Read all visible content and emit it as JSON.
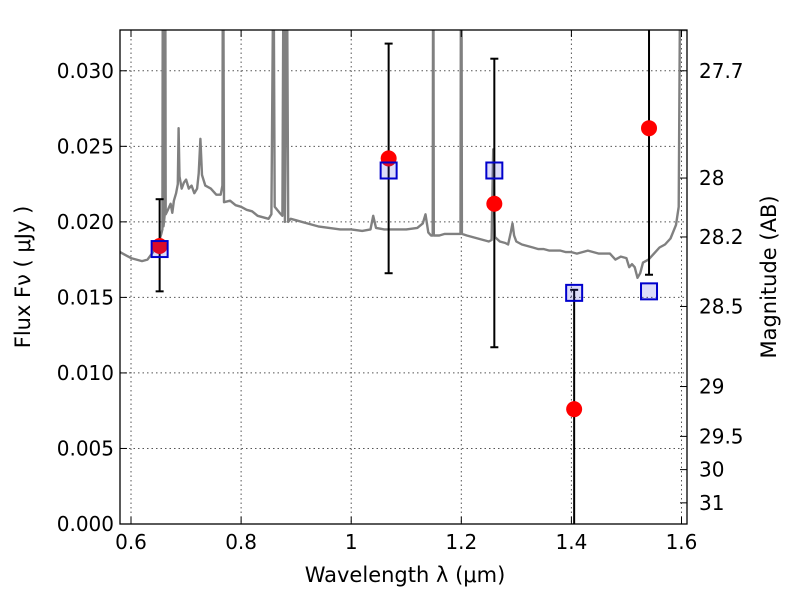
{
  "chart_data": {
    "type": "scatter",
    "xlabel": "Wavelength  λ (μm)",
    "ylabel": "Flux  Fν  ( μJy )",
    "ylabel_right": "Magnitude (AB)",
    "xlim": [
      0.58,
      1.61
    ],
    "ylim": [
      0.0,
      0.0327
    ],
    "grid": true,
    "x_ticks": [
      0.6,
      0.8,
      1.0,
      1.2,
      1.4,
      1.6
    ],
    "x_tick_labels": [
      "0.6",
      "0.8",
      "1",
      "1.2",
      "1.4",
      "1.6"
    ],
    "y_ticks": [
      0.0,
      0.005,
      0.01,
      0.015,
      0.02,
      0.025,
      0.03
    ],
    "y_tick_labels": [
      "0.000",
      "0.005",
      "0.010",
      "0.015",
      "0.020",
      "0.025",
      "0.030"
    ],
    "right_ticks": [
      {
        "label": "27.7",
        "flux": 0.03
      },
      {
        "label": "28",
        "flux": 0.0229
      },
      {
        "label": "28.2",
        "flux": 0.019
      },
      {
        "label": "28.5",
        "flux": 0.0144
      },
      {
        "label": "29",
        "flux": 0.0091
      },
      {
        "label": "29.5",
        "flux": 0.0058
      },
      {
        "label": "30",
        "flux": 0.0036
      },
      {
        "label": "31",
        "flux": 0.0014
      }
    ],
    "series": [
      {
        "kind": "model_spectrum",
        "color": "#808080",
        "points": [
          [
            0.58,
            0.018
          ],
          [
            0.6,
            0.0176
          ],
          [
            0.62,
            0.0174
          ],
          [
            0.63,
            0.0175
          ],
          [
            0.64,
            0.018
          ],
          [
            0.645,
            0.0184
          ],
          [
            0.65,
            0.0186
          ],
          [
            0.655,
            0.0192
          ],
          [
            0.657,
            0.0195
          ],
          [
            0.6575,
            0.0327
          ],
          [
            0.6585,
            0.0327
          ],
          [
            0.659,
            0.0197
          ],
          [
            0.661,
            0.0204
          ],
          [
            0.6615,
            0.0327
          ],
          [
            0.6625,
            0.0327
          ],
          [
            0.663,
            0.0205
          ],
          [
            0.667,
            0.0208
          ],
          [
            0.672,
            0.0212
          ],
          [
            0.675,
            0.0206
          ],
          [
            0.678,
            0.0214
          ],
          [
            0.682,
            0.0219
          ],
          [
            0.685,
            0.0225
          ],
          [
            0.6865,
            0.0262
          ],
          [
            0.688,
            0.023
          ],
          [
            0.692,
            0.0222
          ],
          [
            0.696,
            0.0226
          ],
          [
            0.7,
            0.0228
          ],
          [
            0.705,
            0.0222
          ],
          [
            0.71,
            0.0224
          ],
          [
            0.715,
            0.0219
          ],
          [
            0.72,
            0.0222
          ],
          [
            0.723,
            0.0232
          ],
          [
            0.726,
            0.0255
          ],
          [
            0.729,
            0.0231
          ],
          [
            0.735,
            0.0224
          ],
          [
            0.745,
            0.0222
          ],
          [
            0.755,
            0.0218
          ],
          [
            0.763,
            0.0218
          ],
          [
            0.766,
            0.0224
          ],
          [
            0.7665,
            0.0327
          ],
          [
            0.768,
            0.0327
          ],
          [
            0.769,
            0.0213
          ],
          [
            0.78,
            0.0214
          ],
          [
            0.79,
            0.0211
          ],
          [
            0.8,
            0.021
          ],
          [
            0.81,
            0.0208
          ],
          [
            0.82,
            0.0207
          ],
          [
            0.83,
            0.0204
          ],
          [
            0.84,
            0.0203
          ],
          [
            0.85,
            0.0202
          ],
          [
            0.855,
            0.0205
          ],
          [
            0.8575,
            0.0327
          ],
          [
            0.8595,
            0.0327
          ],
          [
            0.861,
            0.021
          ],
          [
            0.87,
            0.0206
          ],
          [
            0.875,
            0.0204
          ],
          [
            0.8765,
            0.0327
          ],
          [
            0.878,
            0.0327
          ],
          [
            0.8795,
            0.02
          ],
          [
            0.882,
            0.0327
          ],
          [
            0.884,
            0.0327
          ],
          [
            0.8855,
            0.02
          ],
          [
            0.89,
            0.0202
          ],
          [
            0.9,
            0.0201
          ],
          [
            0.92,
            0.0199
          ],
          [
            0.94,
            0.0197
          ],
          [
            0.96,
            0.0196
          ],
          [
            0.98,
            0.0195
          ],
          [
            1.0,
            0.0195
          ],
          [
            1.02,
            0.0194
          ],
          [
            1.035,
            0.0195
          ],
          [
            1.04,
            0.0204
          ],
          [
            1.045,
            0.0196
          ],
          [
            1.06,
            0.0195
          ],
          [
            1.08,
            0.0195
          ],
          [
            1.1,
            0.0195
          ],
          [
            1.12,
            0.0196
          ],
          [
            1.13,
            0.0199
          ],
          [
            1.135,
            0.0205
          ],
          [
            1.14,
            0.0193
          ],
          [
            1.145,
            0.0191
          ],
          [
            1.148,
            0.0191
          ],
          [
            1.1485,
            0.0327
          ],
          [
            1.1495,
            0.0327
          ],
          [
            1.15,
            0.0191
          ],
          [
            1.16,
            0.0191
          ],
          [
            1.17,
            0.0192
          ],
          [
            1.18,
            0.0192
          ],
          [
            1.19,
            0.0192
          ],
          [
            1.1985,
            0.0192
          ],
          [
            1.199,
            0.0327
          ],
          [
            1.2005,
            0.0327
          ],
          [
            1.201,
            0.0192
          ],
          [
            1.21,
            0.0191
          ],
          [
            1.22,
            0.019
          ],
          [
            1.23,
            0.0189
          ],
          [
            1.24,
            0.0188
          ],
          [
            1.25,
            0.0187
          ],
          [
            1.255,
            0.0188
          ],
          [
            1.258,
            0.0248
          ],
          [
            1.261,
            0.019
          ],
          [
            1.27,
            0.0187
          ],
          [
            1.28,
            0.0186
          ],
          [
            1.285,
            0.0185
          ],
          [
            1.29,
            0.0193
          ],
          [
            1.293,
            0.0199
          ],
          [
            1.296,
            0.0191
          ],
          [
            1.3,
            0.0187
          ],
          [
            1.31,
            0.0185
          ],
          [
            1.32,
            0.0184
          ],
          [
            1.33,
            0.0183
          ],
          [
            1.34,
            0.0182
          ],
          [
            1.35,
            0.0182
          ],
          [
            1.36,
            0.0181
          ],
          [
            1.37,
            0.0181
          ],
          [
            1.38,
            0.0181
          ],
          [
            1.39,
            0.018
          ],
          [
            1.4,
            0.018
          ],
          [
            1.41,
            0.0179
          ],
          [
            1.42,
            0.018
          ],
          [
            1.43,
            0.0181
          ],
          [
            1.44,
            0.018
          ],
          [
            1.45,
            0.0179
          ],
          [
            1.46,
            0.0179
          ],
          [
            1.47,
            0.0179
          ],
          [
            1.48,
            0.0175
          ],
          [
            1.49,
            0.0177
          ],
          [
            1.5,
            0.0176
          ],
          [
            1.505,
            0.017
          ],
          [
            1.51,
            0.0172
          ],
          [
            1.515,
            0.017
          ],
          [
            1.52,
            0.0163
          ],
          [
            1.525,
            0.0166
          ],
          [
            1.53,
            0.0173
          ],
          [
            1.54,
            0.0175
          ],
          [
            1.55,
            0.0179
          ],
          [
            1.56,
            0.0183
          ],
          [
            1.57,
            0.0185
          ],
          [
            1.58,
            0.0189
          ],
          [
            1.59,
            0.0198
          ],
          [
            1.595,
            0.021
          ],
          [
            1.597,
            0.0327
          ],
          [
            1.61,
            0.0327
          ]
        ]
      },
      {
        "kind": "model_points",
        "marker": "square",
        "color": "#0000cc",
        "points": [
          [
            0.652,
            0.0182
          ],
          [
            1.068,
            0.0234
          ],
          [
            1.26,
            0.0234
          ],
          [
            1.405,
            0.0153
          ],
          [
            1.541,
            0.0154
          ]
        ]
      },
      {
        "kind": "observed",
        "marker": "circle",
        "color": "#ff0000",
        "points": [
          {
            "x": 0.652,
            "y": 0.0184,
            "low": 0.0154,
            "high": 0.0215
          },
          {
            "x": 1.068,
            "y": 0.0242,
            "low": 0.0166,
            "high": 0.0318
          },
          {
            "x": 1.26,
            "y": 0.0212,
            "low": 0.0117,
            "high": 0.0308
          },
          {
            "x": 1.405,
            "y": 0.0076,
            "low": 0.0,
            "high": 0.0155
          },
          {
            "x": 1.541,
            "y": 0.0262,
            "low": 0.0165,
            "high": 0.0327
          }
        ]
      }
    ]
  }
}
